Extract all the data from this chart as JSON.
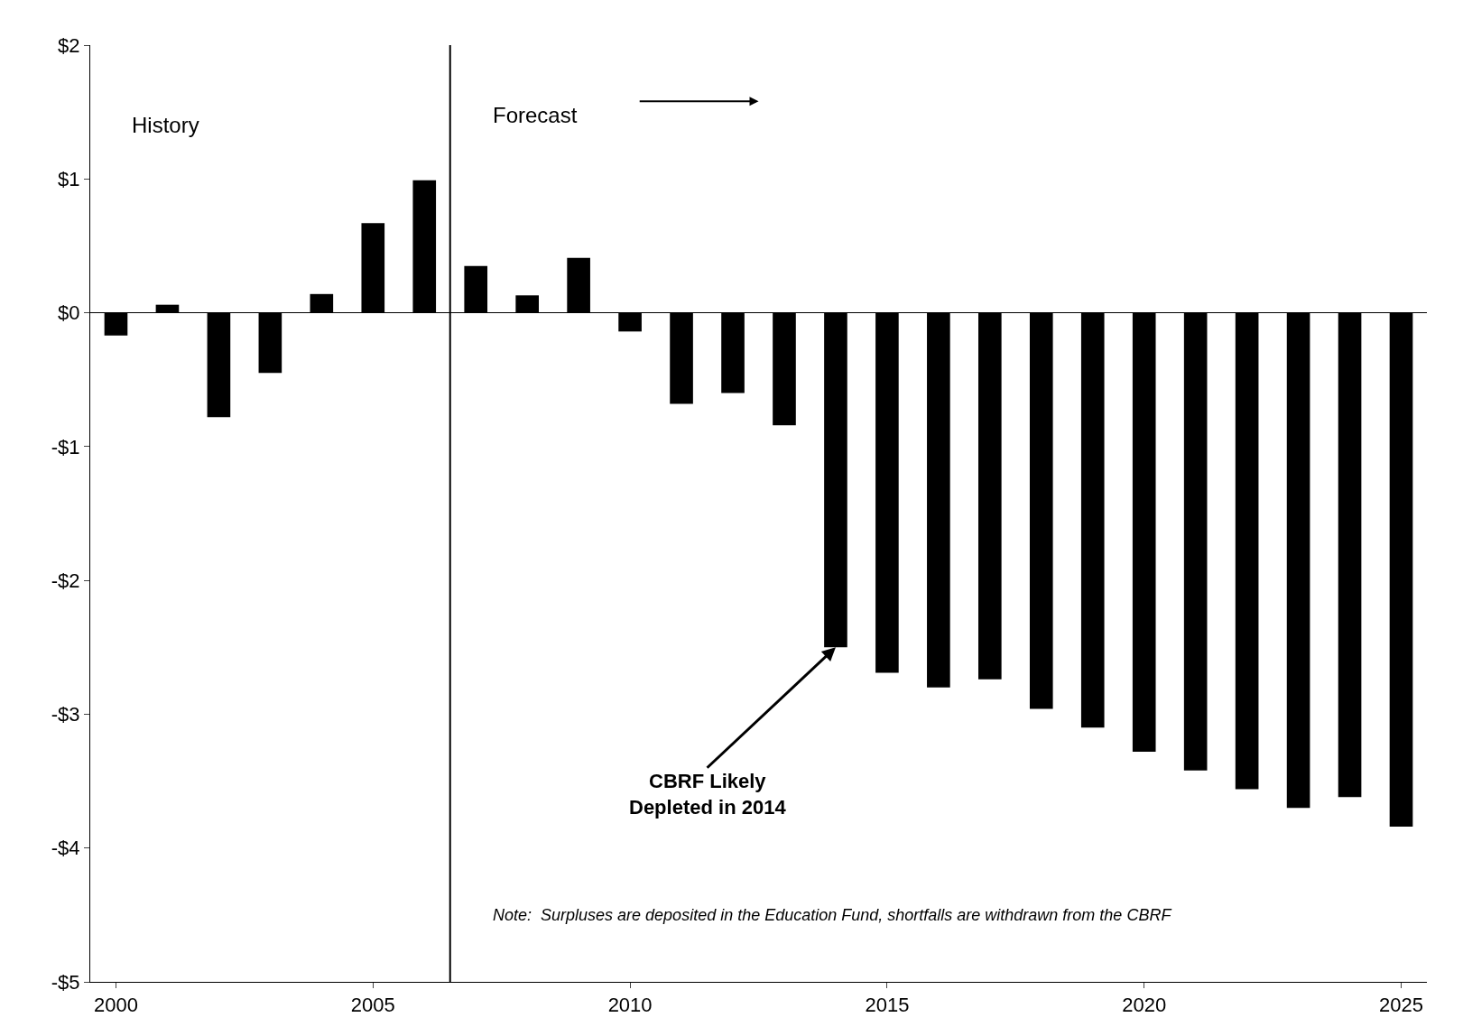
{
  "chart_data": {
    "type": "bar",
    "x": [
      2000,
      2001,
      2002,
      2003,
      2004,
      2005,
      2006,
      2007,
      2008,
      2009,
      2010,
      2011,
      2012,
      2013,
      2014,
      2015,
      2016,
      2017,
      2018,
      2019,
      2020,
      2021,
      2022,
      2023,
      2024,
      2025
    ],
    "values": [
      -0.17,
      0.06,
      -0.78,
      -0.45,
      0.14,
      0.67,
      0.99,
      0.35,
      0.13,
      0.41,
      -0.14,
      -0.68,
      -0.6,
      -0.84,
      -2.5,
      -2.69,
      -2.8,
      -2.74,
      -2.96,
      -3.1,
      -3.28,
      -3.42,
      -3.56,
      -3.7,
      -3.62,
      -3.84
    ],
    "color": "#000000",
    "xlim": [
      1999.5,
      2025.5
    ],
    "xticks": [
      2000,
      2005,
      2010,
      2015,
      2020,
      2025
    ],
    "ylim": [
      -5,
      2
    ],
    "yticks": [
      {
        "value": 2,
        "label": "$2"
      },
      {
        "value": 1,
        "label": "$1"
      },
      {
        "value": 0,
        "label": "$0"
      },
      {
        "value": -1,
        "label": "-$1"
      },
      {
        "value": -2,
        "label": "-$2"
      },
      {
        "value": -3,
        "label": "-$3"
      },
      {
        "value": -4,
        "label": "-$4"
      },
      {
        "value": -5,
        "label": "-$5"
      }
    ],
    "ref_lines": [
      {
        "axis": "x",
        "value": 2006.5,
        "color": "#000000"
      }
    ],
    "annotations": [
      "History",
      "Forecast",
      {
        "text": "CBRF Likely\nDepleted in 2014",
        "x": 2014,
        "y": -2.5
      },
      "Note:  Surpluses are deposited in the Education Fund, shortfalls are withdrawn from the CBRF"
    ]
  }
}
